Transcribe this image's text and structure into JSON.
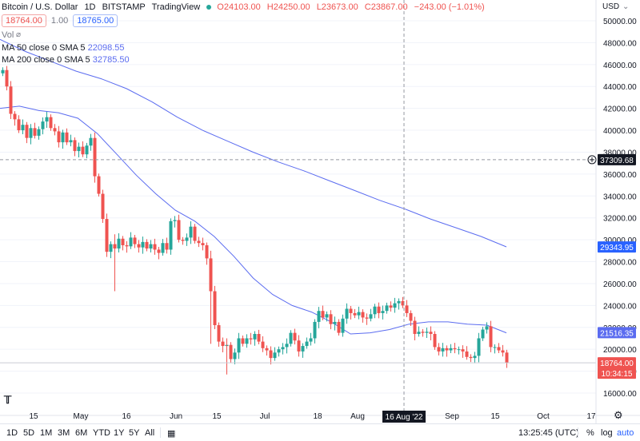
{
  "symbol": {
    "name": "Bitcoin / U.S. Dollar",
    "interval": "1D",
    "exchange": "BITSTAMP",
    "source": "TradingView"
  },
  "ohlc": {
    "open": "O24103.00",
    "high": "H24250.00",
    "low": "L23673.00",
    "close": "C23867.00",
    "change": "−243.00 (−1.01%)"
  },
  "quote": {
    "sell": "18764.00",
    "spread": "1.00",
    "buy": "18765.00"
  },
  "indicators": {
    "vol_label": "Vol",
    "ma50_label": "MA 50 close 0 SMA 5",
    "ma50_value": "22098.55",
    "ma200_label": "MA 200 close 0 SMA 5",
    "ma200_value": "32785.50"
  },
  "currency": "USD",
  "price_axis": {
    "ticks": [
      "50000.00",
      "48000.00",
      "46000.00",
      "44000.00",
      "42000.00",
      "40000.00",
      "38000.00",
      "36000.00",
      "34000.00",
      "32000.00",
      "30000.00",
      "28000.00",
      "26000.00",
      "24000.00",
      "22000.00",
      "20000.00",
      "18000.00",
      "16000.00"
    ],
    "crosshair_label": "37309.68",
    "ma200_badge": "29343.95",
    "ma50_badge": "21516.35",
    "last_price_badge": "18764.00",
    "countdown_badge": "10:34:15"
  },
  "time_axis": {
    "labels": [
      "15",
      "May",
      "16",
      "Jun",
      "15",
      "Jul",
      "18",
      "Aug",
      "Sep",
      "15",
      "Oct",
      "17"
    ],
    "crosshair_label": "16 Aug '22"
  },
  "range_buttons": [
    "1D",
    "5D",
    "1M",
    "3M",
    "6M",
    "YTD",
    "1Y",
    "5Y",
    "All"
  ],
  "footer": {
    "time": "13:25:45 (UTC)",
    "percent": "%",
    "log": "log",
    "auto": "auto"
  },
  "colors": {
    "up": "#26a69a",
    "down": "#ef5350",
    "ma50": "#5b6cf0",
    "ma200": "#5b6cf0",
    "crosshair": "#9598a1"
  },
  "chart_data": {
    "type": "candlestick",
    "ylim": [
      15000,
      51500
    ],
    "price_ticks": [
      16000,
      18000,
      20000,
      22000,
      24000,
      26000,
      28000,
      30000,
      32000,
      34000,
      36000,
      38000,
      40000,
      42000,
      44000,
      46000,
      48000,
      50000
    ],
    "crosshair": {
      "price": 37309.68,
      "date": "16 Aug '22"
    },
    "last_price": 18764.0,
    "ma200": {
      "name": "MA 200",
      "values": [
        48300,
        47200,
        46300,
        45400,
        44700,
        43800,
        42600,
        41200,
        40000,
        39000,
        38000,
        37100,
        36300,
        35400,
        34500,
        33600,
        32800,
        31900,
        31100,
        30300,
        29350
      ]
    },
    "ma50": {
      "name": "MA 50",
      "values": [
        42000,
        42200,
        41800,
        41600,
        41100,
        39700,
        37800,
        35900,
        34200,
        32700,
        31700,
        30300,
        28500,
        26500,
        25000,
        24000,
        23400,
        22500,
        21400,
        21500,
        21800,
        22300,
        22500,
        22500,
        22300,
        22200,
        21500
      ]
    },
    "candles_summary": "Daily BTC/USD from mid-April to mid-September 2022: decline from ~45500 to ~18764 with crash in mid-May and mid-June; range 19000-24000 from late June to September."
  }
}
